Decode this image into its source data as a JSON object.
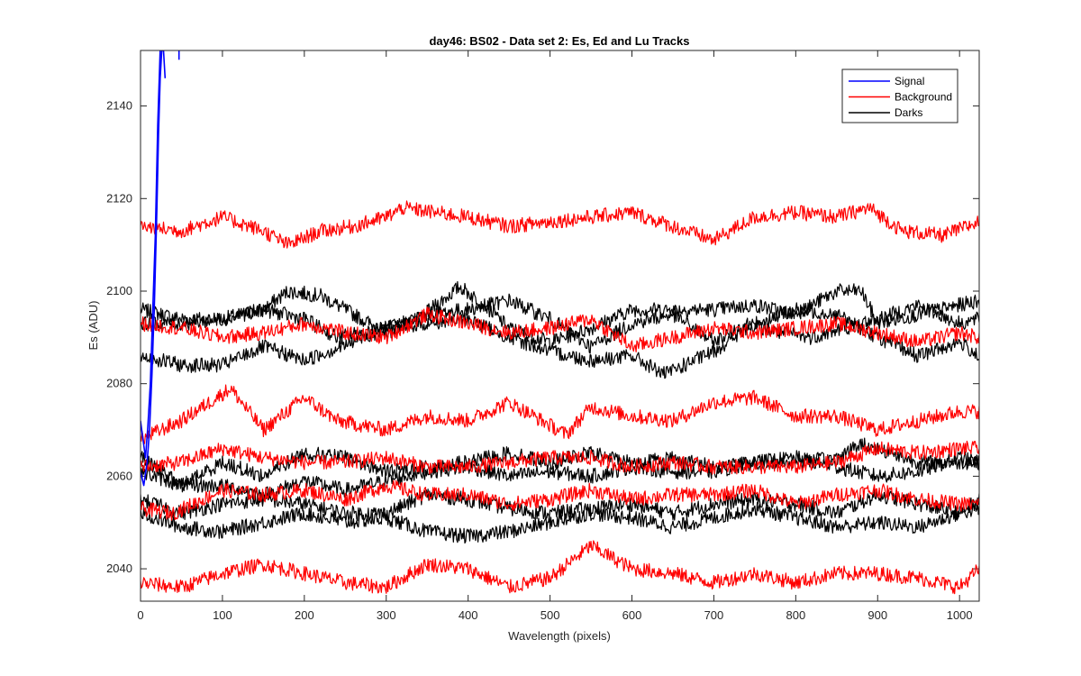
{
  "chart_data": {
    "type": "line",
    "title": "day46: BS02 - Data set 2: Es, Ed and Lu Tracks",
    "xlabel": "Wavelength (pixels)",
    "ylabel": "Es (ADU)",
    "xlim": [
      0,
      1024
    ],
    "ylim": [
      2033,
      2152
    ],
    "xticks": [
      0,
      100,
      200,
      300,
      400,
      500,
      600,
      700,
      800,
      900,
      1000
    ],
    "yticks": [
      2040,
      2060,
      2080,
      2100,
      2120,
      2140
    ],
    "grid": false,
    "legend_position": "top-right",
    "series": [
      {
        "name": "Signal",
        "color": "#0000ff",
        "traces": [
          {
            "x": [
              0,
              4,
              8,
              11,
              14,
              17,
              20,
              22,
              24,
              26,
              28,
              30
            ],
            "y": [
              2061,
              2058,
              2063,
              2070,
              2082,
              2098,
              2118,
              2134,
              2146,
              2152,
              2152,
              2146
            ]
          },
          {
            "x": [
              0,
              3,
              6,
              9,
              12,
              15,
              18,
              21,
              24
            ],
            "y": [
              2072,
              2068,
              2064,
              2071,
              2080,
              2096,
              2112,
              2136,
              2152
            ]
          },
          {
            "x": [
              47,
              47
            ],
            "y": [
              2152,
              2150
            ]
          }
        ]
      },
      {
        "name": "Background",
        "color": "#ff0000",
        "traces": [
          {
            "x": [
              0,
              50,
              100,
              150,
              180,
              220,
              260,
              300,
              320,
              360,
              400,
              450,
              500,
              550,
              600,
              650,
              700,
              750,
              800,
              850,
              890,
              930,
              980,
              1024
            ],
            "y": [
              2114,
              2113,
              2116,
              2113,
              2110,
              2113,
              2114,
              2116,
              2118,
              2117,
              2116,
              2114,
              2115,
              2116,
              2117,
              2114,
              2111,
              2116,
              2117,
              2116,
              2118,
              2113,
              2112,
              2115
            ]
          },
          {
            "x": [
              0,
              50,
              100,
              150,
              200,
              250,
              300,
              350,
              400,
              450,
              500,
              550,
              600,
              650,
              700,
              750,
              800,
              850,
              900,
              950,
              1000,
              1024
            ],
            "y": [
              2093,
              2092,
              2090,
              2091,
              2093,
              2091,
              2090,
              2095,
              2093,
              2091,
              2092,
              2094,
              2088,
              2090,
              2092,
              2091,
              2092,
              2093,
              2091,
              2089,
              2091,
              2090
            ]
          },
          {
            "x": [
              0,
              50,
              110,
              150,
              200,
              240,
              300,
              350,
              400,
              450,
              520,
              550,
              600,
              650,
              700,
              750,
              800,
              850,
              900,
              950,
              1000,
              1024
            ],
            "y": [
              2068,
              2072,
              2079,
              2070,
              2077,
              2072,
              2070,
              2073,
              2072,
              2076,
              2069,
              2075,
              2073,
              2072,
              2076,
              2077,
              2073,
              2073,
              2070,
              2072,
              2074,
              2074
            ]
          },
          {
            "x": [
              0,
              50,
              100,
              150,
              200,
              250,
              300,
              350,
              400,
              450,
              500,
              550,
              600,
              650,
              700,
              750,
              800,
              850,
              900,
              950,
              1000,
              1024
            ],
            "y": [
              2062,
              2063,
              2066,
              2064,
              2063,
              2063,
              2064,
              2062,
              2062,
              2063,
              2064,
              2064,
              2062,
              2063,
              2062,
              2062,
              2062,
              2063,
              2066,
              2065,
              2066,
              2066
            ]
          },
          {
            "x": [
              0,
              40,
              100,
              150,
              200,
              250,
              300,
              350,
              400,
              450,
              500,
              550,
              600,
              650,
              700,
              750,
              800,
              850,
              900,
              950,
              1000,
              1024
            ],
            "y": [
              2053,
              2052,
              2057,
              2056,
              2057,
              2055,
              2058,
              2056,
              2056,
              2054,
              2055,
              2057,
              2055,
              2056,
              2056,
              2057,
              2054,
              2056,
              2057,
              2055,
              2054,
              2054
            ]
          },
          {
            "x": [
              0,
              50,
              100,
              150,
              200,
              250,
              300,
              350,
              400,
              450,
              500,
              550,
              600,
              650,
              700,
              750,
              800,
              850,
              900,
              950,
              1000,
              1024
            ],
            "y": [
              2037,
              2036,
              2039,
              2041,
              2039,
              2037,
              2036,
              2041,
              2040,
              2036,
              2038,
              2045,
              2040,
              2039,
              2037,
              2039,
              2037,
              2039,
              2039,
              2038,
              2036,
              2040
            ]
          }
        ]
      },
      {
        "name": "Darks",
        "color": "#000000",
        "traces": [
          {
            "x": [
              0,
              50,
              100,
              150,
              180,
              220,
              260,
              300,
              340,
              390,
              420,
              450,
              500,
              550,
              600,
              650,
              700,
              750,
              800,
              850,
              880,
              900,
              950,
              1000,
              1024
            ],
            "y": [
              2096,
              2094,
              2094,
              2096,
              2100,
              2099,
              2095,
              2091,
              2094,
              2101,
              2097,
              2092,
              2089,
              2092,
              2096,
              2096,
              2096,
              2097,
              2095,
              2100,
              2100,
              2093,
              2095,
              2097,
              2098
            ]
          },
          {
            "x": [
              0,
              50,
              100,
              150,
              200,
              240,
              300,
              350,
              400,
              450,
              500,
              550,
              600,
              650,
              700,
              740,
              780,
              820,
              860,
              900,
              950,
              1000,
              1024
            ],
            "y": [
              2093,
              2093,
              2094,
              2096,
              2094,
              2090,
              2092,
              2095,
              2096,
              2098,
              2094,
              2088,
              2093,
              2095,
              2089,
              2093,
              2091,
              2090,
              2092,
              2094,
              2097,
              2093,
              2094
            ]
          },
          {
            "x": [
              0,
              50,
              100,
              150,
              200,
              260,
              300,
              350,
              400,
              450,
              500,
              550,
              600,
              640,
              700,
              750,
              800,
              850,
              900,
              950,
              1000,
              1024
            ],
            "y": [
              2086,
              2084,
              2084,
              2088,
              2085,
              2089,
              2092,
              2093,
              2094,
              2090,
              2087,
              2085,
              2086,
              2082,
              2087,
              2093,
              2096,
              2095,
              2090,
              2086,
              2089,
              2086
            ]
          },
          {
            "x": [
              0,
              50,
              100,
              150,
              200,
              250,
              300,
              350,
              400,
              450,
              500,
              550,
              600,
              650,
              700,
              750,
              800,
              850,
              880,
              900,
              950,
              1000,
              1024
            ],
            "y": [
              2064,
              2058,
              2063,
              2060,
              2065,
              2064,
              2061,
              2062,
              2063,
              2065,
              2063,
              2065,
              2063,
              2064,
              2062,
              2063,
              2063,
              2064,
              2067,
              2066,
              2063,
              2063,
              2063
            ]
          },
          {
            "x": [
              0,
              50,
              100,
              150,
              200,
              250,
              300,
              350,
              400,
              450,
              500,
              550,
              600,
              650,
              700,
              750,
              800,
              850,
              900,
              950,
              1000,
              1024
            ],
            "y": [
              2061,
              2058,
              2058,
              2056,
              2059,
              2057,
              2059,
              2061,
              2062,
              2060,
              2061,
              2060,
              2062,
              2061,
              2061,
              2063,
              2064,
              2062,
              2060,
              2061,
              2064,
              2063
            ]
          },
          {
            "x": [
              0,
              50,
              100,
              150,
              200,
              250,
              300,
              350,
              400,
              450,
              500,
              550,
              600,
              650,
              700,
              750,
              800,
              850,
              900,
              950,
              1000,
              1024
            ],
            "y": [
              2055,
              2052,
              2054,
              2055,
              2054,
              2052,
              2052,
              2056,
              2055,
              2053,
              2052,
              2053,
              2054,
              2052,
              2054,
              2055,
              2054,
              2052,
              2056,
              2054,
              2052,
              2055
            ]
          },
          {
            "x": [
              0,
              50,
              100,
              150,
              200,
              250,
              300,
              350,
              400,
              450,
              500,
              550,
              600,
              650,
              700,
              750,
              800,
              850,
              900,
              950,
              1000,
              1024
            ],
            "y": [
              2052,
              2049,
              2048,
              2050,
              2052,
              2050,
              2051,
              2048,
              2047,
              2048,
              2050,
              2052,
              2051,
              2049,
              2051,
              2053,
              2051,
              2049,
              2050,
              2049,
              2052,
              2053
            ]
          }
        ]
      }
    ]
  }
}
